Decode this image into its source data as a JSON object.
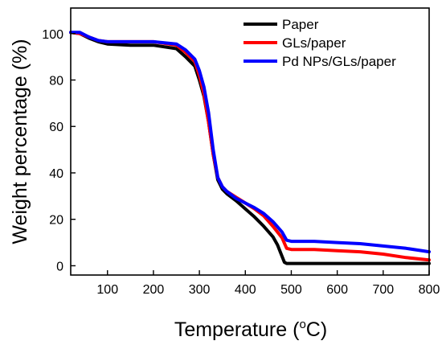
{
  "chart_data": {
    "type": "line",
    "title": "",
    "xlabel": "Temperature (",
    "xlabel_sup": "o",
    "xlabel_suffix": "C)",
    "ylabel": "Weight percentage (%)",
    "xlim": [
      20,
      800
    ],
    "ylim": [
      -4,
      111
    ],
    "xticks": [
      100,
      200,
      300,
      400,
      500,
      600,
      700,
      800
    ],
    "yticks": [
      0,
      20,
      40,
      60,
      80,
      100
    ],
    "grid": false,
    "legend_position": "top-right",
    "series": [
      {
        "name": "Paper",
        "color": "#000000",
        "x": [
          20,
          40,
          60,
          80,
          100,
          150,
          200,
          250,
          270,
          290,
          300,
          310,
          320,
          330,
          340,
          350,
          360,
          380,
          400,
          420,
          440,
          460,
          470,
          480,
          485,
          490,
          500,
          550,
          600,
          700,
          800
        ],
        "y": [
          100.5,
          100,
          98,
          96.5,
          95.5,
          95,
          95,
          93.5,
          90,
          86,
          80,
          73,
          62,
          48,
          37,
          33,
          31,
          28,
          24.5,
          21,
          17,
          12.5,
          9,
          4,
          1.5,
          1,
          1,
          1,
          1,
          1,
          1
        ]
      },
      {
        "name": "GLs/paper",
        "color": "#ff0000",
        "x": [
          20,
          40,
          60,
          80,
          100,
          150,
          200,
          250,
          270,
          290,
          300,
          310,
          320,
          330,
          340,
          350,
          360,
          380,
          400,
          420,
          440,
          460,
          480,
          490,
          500,
          550,
          600,
          650,
          700,
          750,
          800
        ],
        "y": [
          100.5,
          100,
          98.5,
          97,
          96.5,
          96.5,
          96.5,
          95,
          92,
          88,
          82,
          74,
          62,
          48,
          38,
          34,
          32,
          29.5,
          27,
          24.5,
          21.5,
          17,
          12,
          7.5,
          7,
          7,
          6.5,
          6,
          5,
          3.5,
          2.5
        ]
      },
      {
        "name": "Pd NPs/GLs/paper",
        "color": "#0000ff",
        "x": [
          20,
          40,
          60,
          80,
          100,
          150,
          200,
          250,
          270,
          290,
          300,
          310,
          320,
          330,
          340,
          350,
          360,
          380,
          400,
          420,
          440,
          460,
          480,
          490,
          500,
          550,
          600,
          650,
          700,
          750,
          800
        ],
        "y": [
          100.5,
          100.5,
          98.5,
          97,
          96.5,
          96.5,
          96.5,
          95.5,
          93,
          89,
          84,
          77,
          66,
          50,
          38,
          34,
          32,
          29,
          27,
          25,
          22.5,
          19,
          14.5,
          11,
          10.5,
          10.5,
          10,
          9.5,
          8.5,
          7.5,
          6
        ]
      }
    ]
  }
}
